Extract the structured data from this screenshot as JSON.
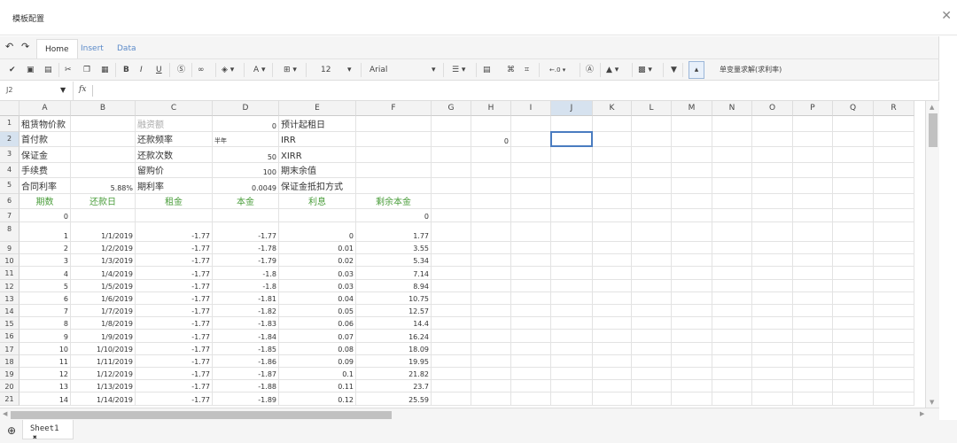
{
  "window": {
    "title": "模板配置",
    "close_icon": "close-icon"
  },
  "ribbon": {
    "tabs": [
      {
        "label": "Home",
        "active": true
      },
      {
        "label": "Insert"
      },
      {
        "label": "Data"
      }
    ]
  },
  "toolbar": {
    "font_size": "12",
    "font_family": "Arial",
    "solver_label": "单变量求解(求利率)",
    "decimal_label": "←.0"
  },
  "formula_bar": {
    "cell_ref": "J2",
    "fx_label": "fx",
    "value": ""
  },
  "columns": [
    "A",
    "B",
    "C",
    "D",
    "E",
    "F",
    "G",
    "H",
    "I",
    "J",
    "K",
    "L",
    "M",
    "N",
    "O",
    "P",
    "Q",
    "R"
  ],
  "selected_cell": "J2",
  "rows": [
    {
      "n": "1",
      "cells": {
        "A": "租赁物价款",
        "C": "融资额",
        "D": "0",
        "E": "预计起租日"
      }
    },
    {
      "n": "2",
      "cells": {
        "A": "首付款",
        "C": "还款频率",
        "D": "半年",
        "E": "IRR",
        "H": "0"
      }
    },
    {
      "n": "3",
      "cells": {
        "A": "保证金",
        "C": "还款次数",
        "D": "50",
        "E": "XIRR"
      }
    },
    {
      "n": "4",
      "cells": {
        "A": "手续费",
        "C": "留购价",
        "D": "100",
        "E": "期末余值"
      }
    },
    {
      "n": "5",
      "cells": {
        "A": "合同利率",
        "B": "5.88%",
        "C": "期利率",
        "D": "0.0049",
        "E": "保证金抵扣方式"
      }
    },
    {
      "n": "6",
      "cells": {
        "A": "期数",
        "B": "还款日",
        "C": "租金",
        "D": "本金",
        "E": "利息",
        "F": "剩余本金"
      }
    },
    {
      "n": "7",
      "cells": {
        "A": "0",
        "F": "0"
      }
    },
    {
      "n": "8",
      "cells": {
        "A": "1",
        "B": "1/1/2019",
        "C": "-1.77",
        "D": "-1.77",
        "E": "0",
        "F": "1.77"
      }
    },
    {
      "n": "9",
      "cells": {
        "A": "2",
        "B": "1/2/2019",
        "C": "-1.77",
        "D": "-1.78",
        "E": "0.01",
        "F": "3.55"
      }
    },
    {
      "n": "10",
      "cells": {
        "A": "3",
        "B": "1/3/2019",
        "C": "-1.77",
        "D": "-1.79",
        "E": "0.02",
        "F": "5.34"
      }
    },
    {
      "n": "11",
      "cells": {
        "A": "4",
        "B": "1/4/2019",
        "C": "-1.77",
        "D": "-1.8",
        "E": "0.03",
        "F": "7.14"
      }
    },
    {
      "n": "12",
      "cells": {
        "A": "5",
        "B": "1/5/2019",
        "C": "-1.77",
        "D": "-1.8",
        "E": "0.03",
        "F": "8.94"
      }
    },
    {
      "n": "13",
      "cells": {
        "A": "6",
        "B": "1/6/2019",
        "C": "-1.77",
        "D": "-1.81",
        "E": "0.04",
        "F": "10.75"
      }
    },
    {
      "n": "14",
      "cells": {
        "A": "7",
        "B": "1/7/2019",
        "C": "-1.77",
        "D": "-1.82",
        "E": "0.05",
        "F": "12.57"
      }
    },
    {
      "n": "15",
      "cells": {
        "A": "8",
        "B": "1/8/2019",
        "C": "-1.77",
        "D": "-1.83",
        "E": "0.06",
        "F": "14.4"
      }
    },
    {
      "n": "16",
      "cells": {
        "A": "9",
        "B": "1/9/2019",
        "C": "-1.77",
        "D": "-1.84",
        "E": "0.07",
        "F": "16.24"
      }
    },
    {
      "n": "17",
      "cells": {
        "A": "10",
        "B": "1/10/2019",
        "C": "-1.77",
        "D": "-1.85",
        "E": "0.08",
        "F": "18.09"
      }
    },
    {
      "n": "18",
      "cells": {
        "A": "11",
        "B": "1/11/2019",
        "C": "-1.77",
        "D": "-1.86",
        "E": "0.09",
        "F": "19.95"
      }
    },
    {
      "n": "19",
      "cells": {
        "A": "12",
        "B": "1/12/2019",
        "C": "-1.77",
        "D": "-1.87",
        "E": "0.1",
        "F": "21.82"
      }
    },
    {
      "n": "20",
      "cells": {
        "A": "13",
        "B": "1/13/2019",
        "C": "-1.77",
        "D": "-1.88",
        "E": "0.11",
        "F": "23.7"
      }
    },
    {
      "n": "21",
      "cells": {
        "A": "14",
        "B": "1/14/2019",
        "C": "-1.77",
        "D": "-1.89",
        "E": "0.12",
        "F": "25.59"
      }
    }
  ],
  "sheets": [
    {
      "label": "Sheet1",
      "active": true
    }
  ],
  "colors": {
    "header_green": "#4a9d3b",
    "selection": "#4a7cc0",
    "tab_link": "#5b8ac9"
  }
}
